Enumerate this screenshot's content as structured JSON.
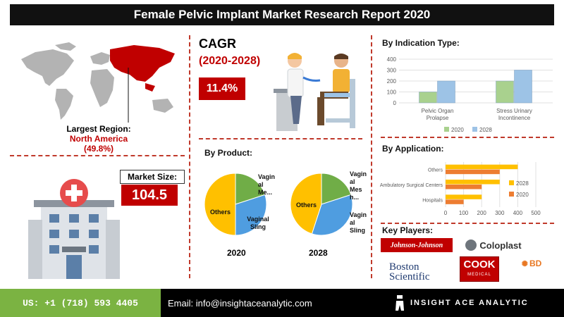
{
  "title": "Female Pelvic Implant Market Research Report 2020",
  "region": {
    "label": "Largest Region:",
    "name": "North America",
    "share": "(49.8%)"
  },
  "market_size": {
    "label": "Market Size:",
    "value": "104.5"
  },
  "cagr": {
    "label": "CAGR",
    "period": "(2020-2028)",
    "value": "11.4%"
  },
  "product": {
    "title": "By Product:",
    "year_2020": "2020",
    "year_2028": "2028",
    "labels_2020": {
      "vaginal_mesh": "Vagin al Me...",
      "vaginal_sling": "Vaginal Sling",
      "others": "Others"
    },
    "labels_2028": {
      "vaginal_mesh": "Vagin al Mes h...",
      "vaginal_sling": "Vagin al Sling",
      "others": "Others"
    }
  },
  "indication": {
    "title": "By Indication Type:"
  },
  "application": {
    "title": "By Application:"
  },
  "key_players": {
    "title": "Key Players:",
    "jnj": "Johnson-Johnson",
    "coloplast": "Coloplast",
    "boston": "Boston Scientific",
    "cook": "COOK",
    "cook_sub": "MEDICAL",
    "bd": "BD"
  },
  "footer": {
    "phone": "US: +1 (718) 593 4405",
    "email": "Email: info@insightaceanalytic.com",
    "brand": "INSIGHT ACE ANALYTIC"
  },
  "colors": {
    "accent_red": "#c00000",
    "green_2020": "#a9d18e",
    "blue_2028": "#9dc3e6",
    "app_orange": "#ed7d31",
    "app_yellow": "#ffc000",
    "pie_green": "#70ad47",
    "pie_blue": "#4f9de0",
    "pie_yellow": "#ffc000"
  },
  "chart_data": [
    {
      "type": "bar",
      "id": "indication",
      "categories": [
        "Pelvic Organ Prolapse",
        "Stress Urinary Incontinence"
      ],
      "series": [
        {
          "name": "2020",
          "values": [
            100,
            200
          ]
        },
        {
          "name": "2028",
          "values": [
            200,
            300
          ]
        }
      ],
      "ylim": [
        0,
        400
      ],
      "yticks": [
        0,
        100,
        200,
        300,
        400
      ],
      "legend": "bottom"
    },
    {
      "type": "bar",
      "orientation": "horizontal",
      "id": "application",
      "categories": [
        "Others",
        "Ambulatory Surgical Centers",
        "Hospitals"
      ],
      "series": [
        {
          "name": "2028",
          "values": [
            400,
            300,
            200
          ]
        },
        {
          "name": "2020",
          "values": [
            300,
            200,
            100
          ]
        }
      ],
      "xlim": [
        0,
        500
      ],
      "xticks": [
        0,
        100,
        200,
        300,
        400,
        500
      ],
      "legend": "right"
    },
    {
      "type": "pie",
      "id": "product_2020",
      "labels": [
        "Vaginal Mesh",
        "Vaginal Sling",
        "Others"
      ],
      "values": [
        20,
        30,
        50
      ]
    },
    {
      "type": "pie",
      "id": "product_2028",
      "labels": [
        "Vaginal Mesh",
        "Vaginal Sling",
        "Others"
      ],
      "values": [
        20,
        35,
        45
      ]
    }
  ]
}
